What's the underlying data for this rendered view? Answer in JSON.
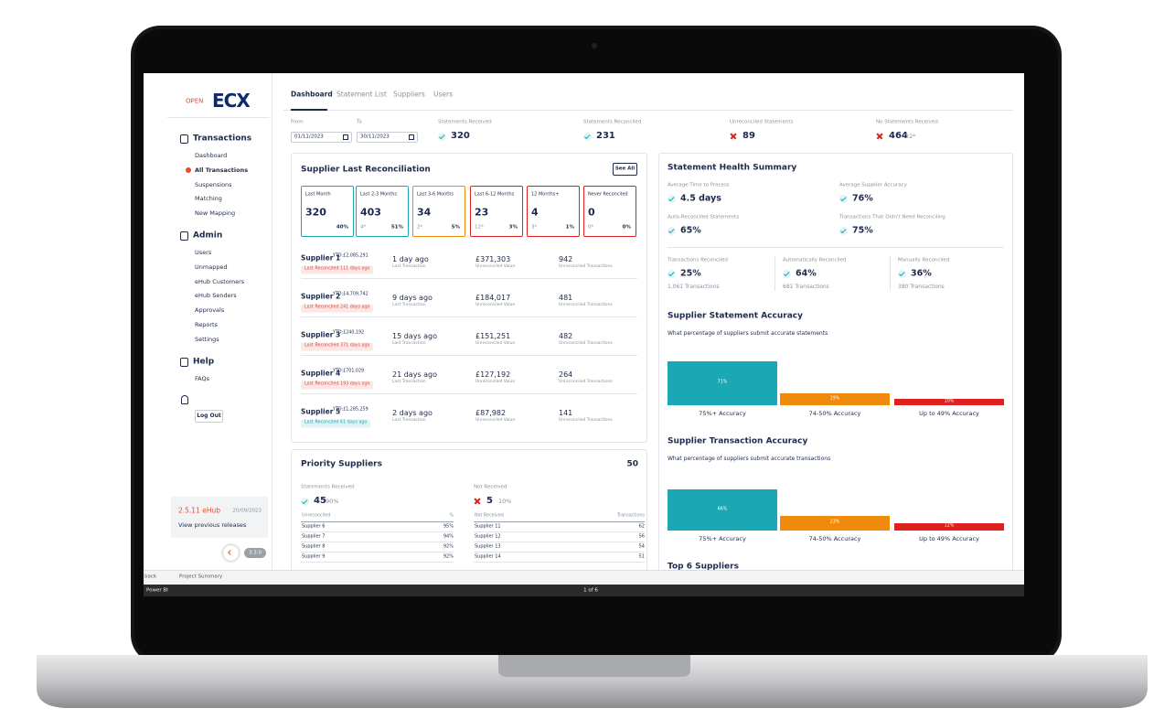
{
  "logo": {
    "small": "OPEN",
    "big": "ECX"
  },
  "sidebar": {
    "sections": [
      {
        "title": "Transactions",
        "y": 152,
        "items": [
          "Dashboard",
          "All Transactions",
          "Suspensions",
          "Matching",
          "New Mapping"
        ]
      },
      {
        "title": "Admin",
        "y": 258,
        "items": [
          "Users",
          "Unmapped",
          "eHub Customers",
          "eHub Senders",
          "Approvals",
          "Reports",
          "Settings"
        ]
      },
      {
        "title": "Help",
        "y": 396,
        "items": [
          "FAQs"
        ]
      }
    ],
    "logout": "Log Out",
    "release": {
      "version": "2.5.11 eHub",
      "date": "20/09/2023",
      "link": "View previous releases"
    },
    "badge": "3.3.0"
  },
  "tabs": [
    "Dashboard",
    "Statement List",
    "Suppliers",
    "Users"
  ],
  "filters": {
    "from_label": "From",
    "from": "01/11/2023",
    "to_label": "To",
    "to": "30/11/2023"
  },
  "kpis": [
    {
      "label": "Statements Received",
      "value": "320",
      "icon": "check"
    },
    {
      "label": "Statements Reconciled",
      "value": "231",
      "icon": "check"
    },
    {
      "label": "Unreconciled Statements",
      "value": "89",
      "icon": "cross"
    },
    {
      "label": "No Statements Received",
      "value": "464",
      "note": "22*",
      "icon": "cross"
    }
  ],
  "last_recon": {
    "title": "Supplier Last Reconciliation",
    "button": "See All",
    "buckets": [
      {
        "label": "Last Month",
        "value": "320",
        "pct": "40%",
        "color": "#1ba8b5"
      },
      {
        "label": "Last 2-3 Months",
        "value": "403",
        "note": "4*",
        "pct": "51%",
        "color": "#1ba8b5"
      },
      {
        "label": "Last 3-6 Months",
        "value": "34",
        "note": "2*",
        "pct": "5%",
        "color": "#f08a0a"
      },
      {
        "label": "Last 6-12 Months",
        "value": "23",
        "note": "12*",
        "pct": "3%",
        "color": "#e01f1f"
      },
      {
        "label": "12 Months+",
        "value": "4",
        "note": "3*",
        "pct": "1%",
        "color": "#e01f1f"
      },
      {
        "label": "Never Reconciled",
        "value": "0",
        "note": "0*",
        "pct": "0%",
        "color": "#e01f1f"
      }
    ],
    "labels": {
      "ago": "Last Transaction",
      "value": "Unreconciled Value",
      "count": "Unreconciled Transactions"
    },
    "rows": [
      {
        "name": "Supplier 1",
        "ytd": "YTD:£2,085,291",
        "badge": "Last Reconciled 111 days ago",
        "badge_color": "#e04a3a",
        "ago": "1 day ago",
        "value": "£371,303",
        "count": "942"
      },
      {
        "name": "Supplier 2",
        "ytd": "YTD:£4,709,742",
        "badge": "Last Reconciled 241 days ago",
        "badge_color": "#e04a3a",
        "ago": "9 days ago",
        "value": "£184,017",
        "count": "481"
      },
      {
        "name": "Supplier 3",
        "ytd": "YTD:£240,192",
        "badge": "Last Reconciled 371 days ago",
        "badge_color": "#e04a3a",
        "ago": "15 days ago",
        "value": "£151,251",
        "count": "482"
      },
      {
        "name": "Supplier 4",
        "ytd": "YTD:£701,029",
        "badge": "Last Reconciled 193 days ago",
        "badge_color": "#e04a3a",
        "ago": "21 days ago",
        "value": "£127,192",
        "count": "264"
      },
      {
        "name": "Supplier 5",
        "ytd": "YTD:£1,285,259",
        "badge": "Last Reconciled 61 days ago",
        "badge_color": "#1ba8b5",
        "ago": "2 days ago",
        "value": "£87,982",
        "count": "141"
      }
    ]
  },
  "priority": {
    "title": "Priority Suppliers",
    "count": "50",
    "received": {
      "label": "Statements Received",
      "value": "45",
      "pct": "90%"
    },
    "not_received": {
      "label": "Not Received",
      "value": "5",
      "pct": "10%"
    },
    "table1": {
      "headers": [
        "Unreconciled",
        "%"
      ],
      "rows": [
        [
          "Supplier 6",
          "95%"
        ],
        [
          "Supplier 7",
          "94%"
        ],
        [
          "Supplier 8",
          "92%"
        ],
        [
          "Supplier 9",
          "92%"
        ]
      ]
    },
    "table2": {
      "headers": [
        "Not Received",
        "Transactions"
      ],
      "rows": [
        [
          "Supplier 11",
          "62"
        ],
        [
          "Supplier 12",
          "56"
        ],
        [
          "Supplier 13",
          "54"
        ],
        [
          "Supplier 14",
          "51"
        ]
      ]
    }
  },
  "health": {
    "title": "Statement Health Summary",
    "metrics": [
      {
        "label": "Average Time to Process",
        "value": "4.5 days",
        "icon": "check"
      },
      {
        "label": "Average Supplier Accuracy",
        "value": "76%",
        "icon": "check"
      },
      {
        "label": "Auto-Reconciled Statements",
        "value": "65%",
        "icon": "check"
      },
      {
        "label": "Transactions That Didn't Need Reconciling",
        "value": "75%",
        "icon": "check"
      }
    ],
    "trio": [
      {
        "label": "Transactions Reconciled",
        "value": "25%",
        "sub": "1,061 Transactions"
      },
      {
        "label": "Automatically Reconciled",
        "value": "64%",
        "sub": "681 Transactions"
      },
      {
        "label": "Manually Reconciled",
        "value": "36%",
        "sub": "380 Transactions"
      }
    ]
  },
  "charts": [
    {
      "type": "bar",
      "title": "Supplier Statement Accuracy",
      "subtitle": "What percentage of suppliers submit accurate statements",
      "categories": [
        "75%+ Accuracy",
        "74-50% Accuracy",
        "Up to 49% Accuracy"
      ],
      "values": [
        71,
        19,
        10
      ],
      "value_labels": [
        "71%",
        "19%",
        "10%"
      ],
      "colors": [
        "#1ba8b5",
        "#f08a0a",
        "#e01f1f"
      ]
    },
    {
      "type": "bar",
      "title": "Supplier Transaction Accuracy",
      "subtitle": "What percentage of suppliers submit accurate transactions",
      "categories": [
        "75%+ Accuracy",
        "74-50% Accuracy",
        "Up to 49% Accuracy"
      ],
      "values": [
        66,
        23,
        12
      ],
      "value_labels": [
        "66%",
        "23%",
        "12%"
      ],
      "colors": [
        "#1ba8b5",
        "#f08a0a",
        "#e01f1f"
      ]
    }
  ],
  "top_title": "Top 6 Suppliers",
  "powerbi": {
    "back": "back",
    "page": "Project Summary",
    "brand": "Power BI",
    "pager": "1 of 6"
  }
}
